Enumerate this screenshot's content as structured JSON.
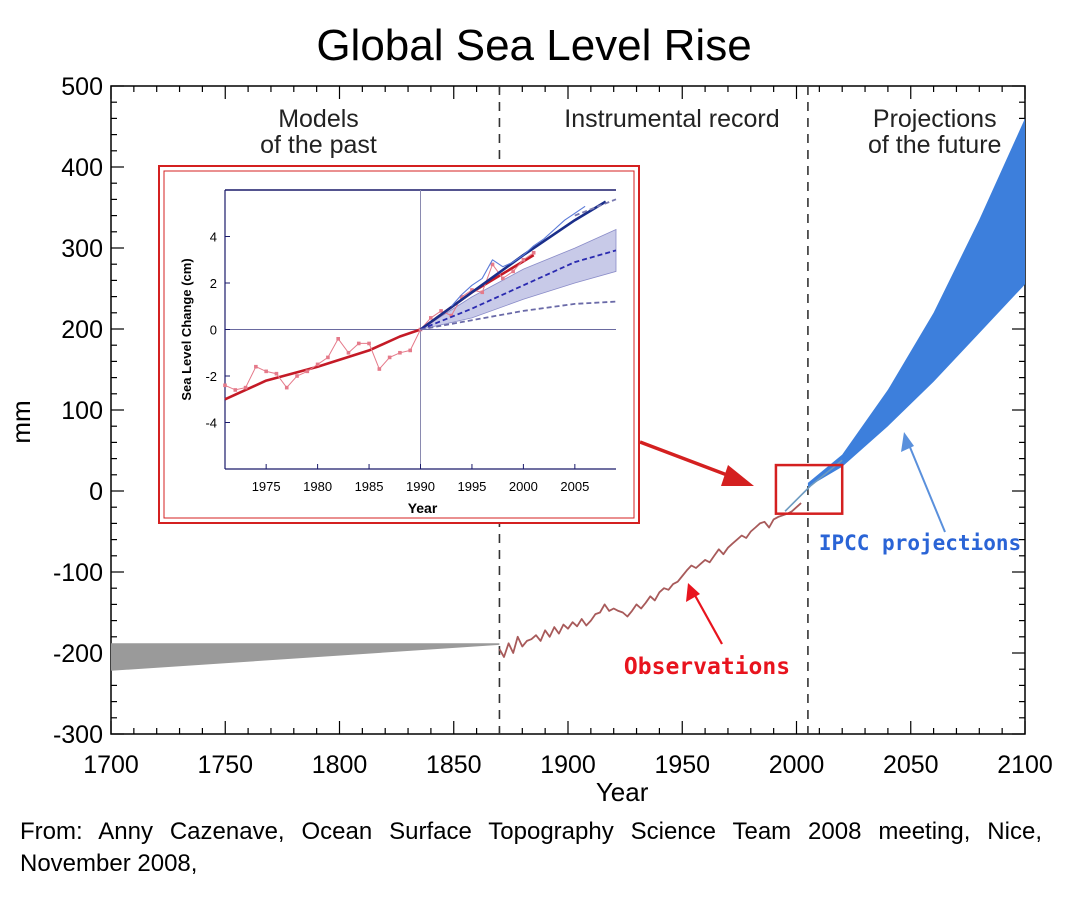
{
  "chart_data": [
    {
      "type": "area",
      "title": "Global Sea Level Rise",
      "xlabel": "Year",
      "ylabel": "mm",
      "xlim": [
        1700,
        2100
      ],
      "ylim": [
        -300,
        500
      ],
      "x_ticks": [
        1700,
        1750,
        1800,
        1850,
        1900,
        1950,
        2000,
        2050,
        2100
      ],
      "y_ticks": [
        500,
        400,
        300,
        200,
        100,
        0,
        -100,
        -200,
        -300
      ],
      "grid": false,
      "period_dividers": [
        1870,
        2005
      ],
      "periods": [
        {
          "label": [
            "Models",
            "of the past"
          ]
        },
        {
          "label": [
            "Instrumental record"
          ]
        },
        {
          "label": [
            "Projections",
            "of the future"
          ]
        }
      ],
      "series": [
        {
          "name": "",
          "kind": "band",
          "color": "#9a9a9a",
          "x": [
            1700,
            1870
          ],
          "lower": [
            -222,
            -190
          ],
          "upper": [
            -188,
            -188
          ]
        },
        {
          "name": "Observations",
          "kind": "line",
          "color": "#a85a5a",
          "x": [
            1870,
            1872,
            1874,
            1876,
            1878,
            1880,
            1882,
            1884,
            1886,
            1888,
            1890,
            1892,
            1894,
            1896,
            1898,
            1900,
            1902,
            1904,
            1906,
            1908,
            1910,
            1912,
            1914,
            1916,
            1918,
            1920,
            1922,
            1924,
            1926,
            1928,
            1930,
            1932,
            1934,
            1936,
            1938,
            1940,
            1942,
            1944,
            1946,
            1948,
            1950,
            1952,
            1954,
            1956,
            1958,
            1960,
            1962,
            1964,
            1966,
            1968,
            1970,
            1972,
            1974,
            1976,
            1978,
            1980,
            1982,
            1984,
            1986,
            1988,
            1990,
            1992,
            1994,
            1996,
            1998,
            2000,
            2002
          ],
          "y": [
            -195,
            -205,
            -188,
            -200,
            -180,
            -192,
            -185,
            -183,
            -178,
            -185,
            -172,
            -180,
            -168,
            -176,
            -165,
            -170,
            -162,
            -167,
            -158,
            -166,
            -160,
            -152,
            -150,
            -140,
            -148,
            -145,
            -148,
            -150,
            -155,
            -148,
            -140,
            -145,
            -138,
            -130,
            -135,
            -125,
            -120,
            -122,
            -115,
            -112,
            -105,
            -98,
            -92,
            -95,
            -90,
            -85,
            -88,
            -80,
            -72,
            -78,
            -70,
            -65,
            -60,
            -55,
            -58,
            -50,
            -45,
            -40,
            -38,
            -45,
            -35,
            -32,
            -30,
            -28,
            -25,
            -20,
            -15
          ]
        },
        {
          "name": "IPCC projections",
          "kind": "band",
          "color": "#3d7fdc",
          "x": [
            2005,
            2020,
            2040,
            2060,
            2080,
            2100
          ],
          "lower": [
            5,
            30,
            80,
            135,
            195,
            255
          ],
          "upper": [
            10,
            45,
            125,
            220,
            335,
            460
          ]
        }
      ],
      "annotations": [
        {
          "text": "Observations",
          "color": "#e8141e"
        },
        {
          "text": "IPCC projections",
          "color": "#2a64d6"
        }
      ]
    },
    {
      "type": "line",
      "title": "",
      "xlabel": "Year",
      "ylabel": "Sea Level Change (cm)",
      "xlim": [
        1971,
        2009
      ],
      "ylim": [
        -6,
        6
      ],
      "x_ticks": [
        1975,
        1980,
        1985,
        1990,
        1995,
        2000,
        2005
      ],
      "y_ticks": [
        4,
        2,
        0,
        -2,
        -4
      ],
      "grid": false,
      "series": [
        {
          "name": "",
          "style": "solid",
          "color": "#c41a26",
          "x": [
            1971,
            1975,
            1980,
            1985,
            1988,
            1990,
            1995,
            2001
          ],
          "y": [
            -3.0,
            -2.2,
            -1.6,
            -0.9,
            -0.3,
            0.0,
            1.6,
            3.2
          ]
        },
        {
          "name": "",
          "style": "markers",
          "color": "#e57a8a",
          "x": [
            1971,
            1972,
            1973,
            1974,
            1975,
            1976,
            1977,
            1978,
            1979,
            1980,
            1981,
            1982,
            1983,
            1984,
            1985,
            1986,
            1987,
            1988,
            1989,
            1990,
            1991,
            1992,
            1993,
            1994,
            1995,
            1996,
            1997,
            1998,
            1999,
            2000,
            2001
          ],
          "y": [
            -2.4,
            -2.6,
            -2.5,
            -1.6,
            -1.8,
            -1.9,
            -2.5,
            -2.0,
            -1.8,
            -1.5,
            -1.2,
            -0.4,
            -1.0,
            -0.6,
            -0.6,
            -1.7,
            -1.2,
            -1.0,
            -0.9,
            0.0,
            0.5,
            0.8,
            0.6,
            1.4,
            1.7,
            1.6,
            2.8,
            2.2,
            2.5,
            3.0,
            3.3
          ]
        },
        {
          "name": "",
          "style": "solid",
          "color": "#1a2e8a",
          "x": [
            1990,
            1995,
            2000,
            2005,
            2008
          ],
          "y": [
            0.0,
            1.6,
            3.2,
            4.7,
            5.5
          ]
        },
        {
          "name": "",
          "style": "thin",
          "color": "#5a7ad8",
          "x": [
            1993,
            1994,
            1995,
            1996,
            1997,
            1998,
            1999,
            2000,
            2001,
            2002,
            2003,
            2004,
            2005,
            2006
          ],
          "y": [
            1.0,
            1.5,
            1.9,
            2.2,
            3.0,
            2.7,
            2.9,
            3.2,
            3.6,
            3.9,
            4.3,
            4.7,
            5.0,
            5.3
          ]
        },
        {
          "name": "",
          "style": "dashed",
          "color": "#2a2ab0",
          "x": [
            1990,
            1995,
            2000,
            2005,
            2009
          ],
          "y": [
            0.0,
            0.9,
            1.9,
            2.9,
            3.4
          ]
        },
        {
          "name": "",
          "style": "dashed",
          "color": "#6a6aa8",
          "x": [
            1990,
            1995,
            2000,
            2005,
            2009
          ],
          "y": [
            0.0,
            0.4,
            0.8,
            1.1,
            1.2
          ]
        },
        {
          "name": "",
          "style": "dashed",
          "color": "#7a7ab0",
          "x": [
            2005,
            2009
          ],
          "y": [
            4.9,
            5.6
          ]
        }
      ],
      "bands": [
        {
          "color": "#b6b8e0",
          "x": [
            1990,
            1995,
            2000,
            2005,
            2009
          ],
          "lower": [
            0.0,
            0.5,
            1.3,
            2.0,
            2.5
          ],
          "upper": [
            0.0,
            1.4,
            2.6,
            3.5,
            4.3
          ]
        }
      ]
    }
  ],
  "caption": "From: Anny Cazenave, Ocean Surface Topography Science Team 2008 meeting, Nice, November 2008,"
}
